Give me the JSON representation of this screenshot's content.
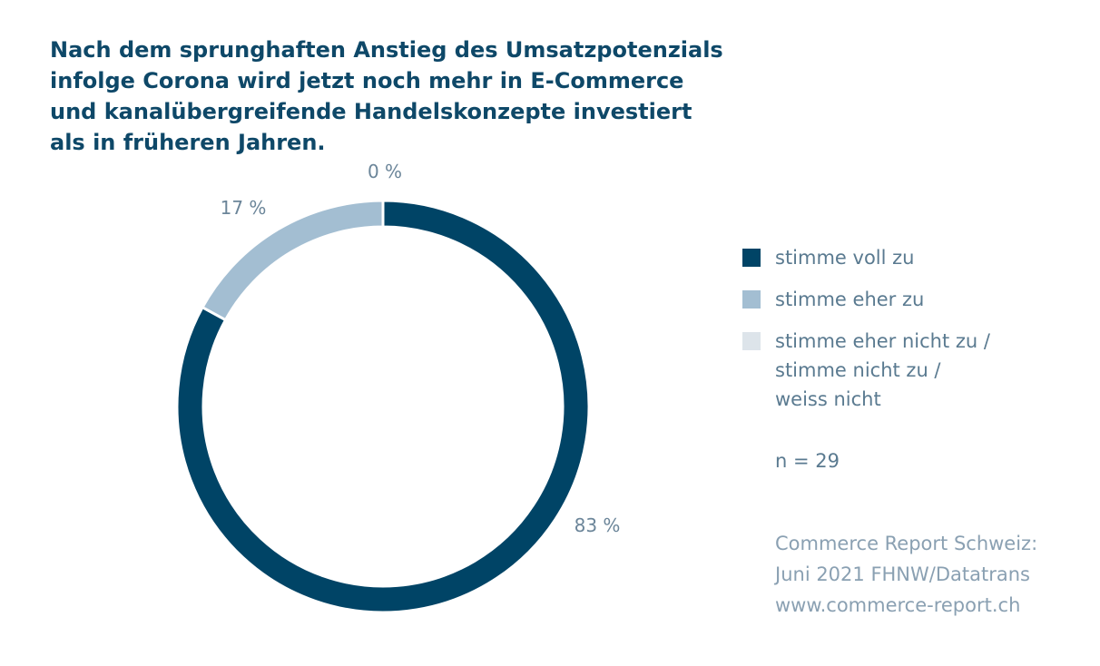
{
  "chart_data": {
    "type": "pie",
    "title_lines": [
      "Nach dem sprunghaften Anstieg des Umsatzpotenzials",
      "infolge Corona wird jetzt noch mehr in E-Commerce",
      "und kanalübergreifende Handelskonzepte investiert",
      "als in früheren Jahren."
    ],
    "style": "donut",
    "categories": [
      "stimme voll zu",
      "stimme eher zu",
      "stimme eher nicht zu /\nstimme nicht zu /\nweiss nicht"
    ],
    "values": [
      83,
      17,
      0
    ],
    "value_labels": [
      "83 %",
      "17 %",
      "0 %"
    ],
    "colors": [
      "#004466",
      "#a3bed2",
      "#dde4ea"
    ],
    "legend_position": "right",
    "note": "n = 29",
    "source_lines": [
      "Commerce Report Schweiz:",
      "Juni 2021 FHNW/Datatrans",
      "www.commerce-report.ch"
    ]
  }
}
